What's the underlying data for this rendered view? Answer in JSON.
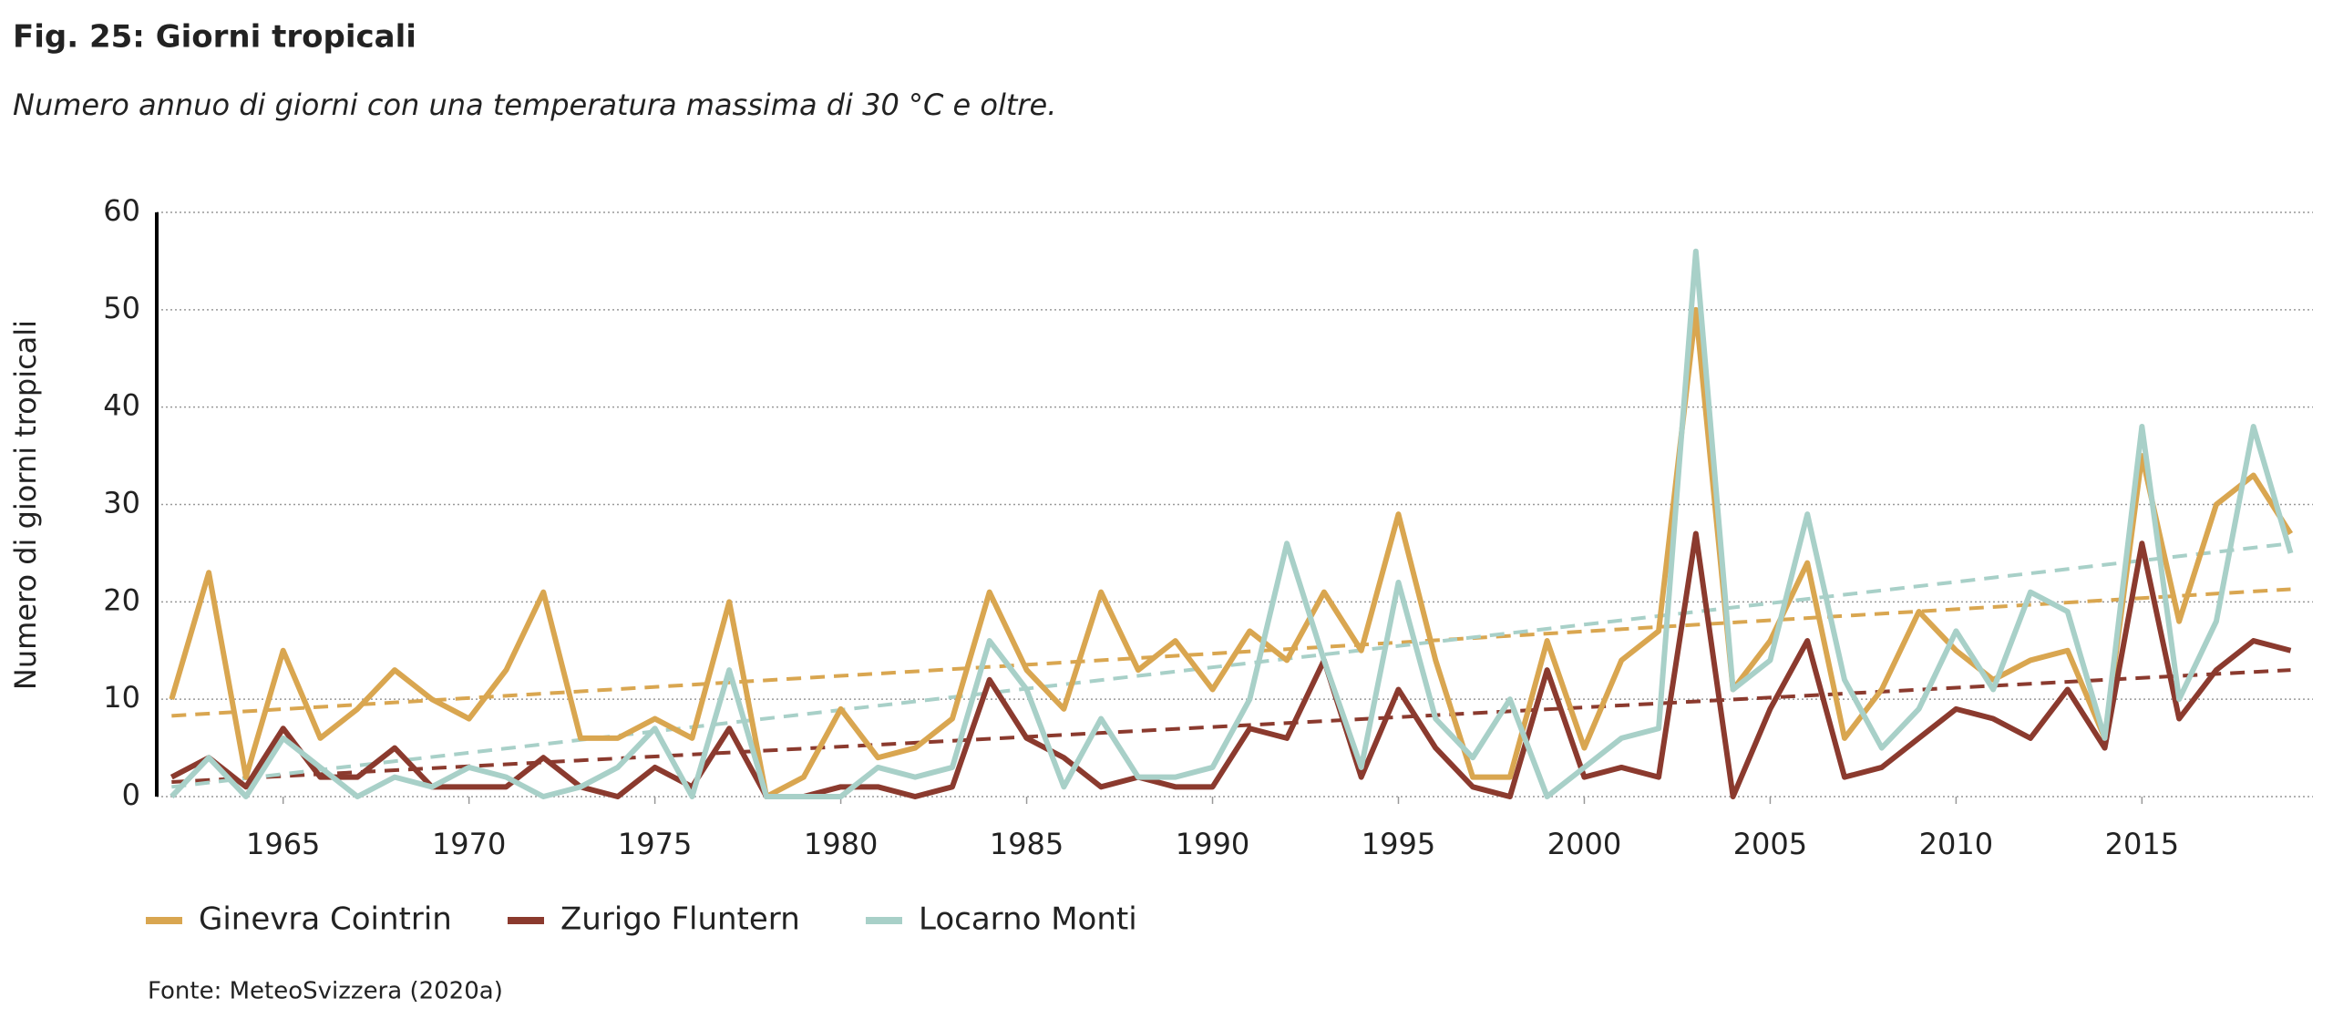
{
  "chart_data": {
    "type": "line",
    "title": "Fig. 25:  Giorni tropicali",
    "subtitle": "Numero annuo di giorni con una temperatura massima di 30 °C e oltre.",
    "y_label": "Numero di giorni tropicali",
    "source": "Fonte: MeteoSvizzera (2020a)",
    "x": [
      1962,
      1963,
      1964,
      1965,
      1966,
      1967,
      1968,
      1969,
      1970,
      1971,
      1972,
      1973,
      1974,
      1975,
      1976,
      1977,
      1978,
      1979,
      1980,
      1981,
      1982,
      1983,
      1984,
      1985,
      1986,
      1987,
      1988,
      1989,
      1990,
      1991,
      1992,
      1993,
      1994,
      1995,
      1996,
      1997,
      1998,
      1999,
      2000,
      2001,
      2002,
      2003,
      2004,
      2005,
      2006,
      2007,
      2008,
      2009,
      2010,
      2011,
      2012,
      2013,
      2014,
      2015,
      2016,
      2017,
      2018,
      2019
    ],
    "series": [
      {
        "name": "Ginevra Cointrin",
        "color": "#d9a650",
        "values": [
          10,
          23,
          2,
          15,
          6,
          9,
          13,
          10,
          8,
          13,
          21,
          6,
          6,
          8,
          6,
          20,
          0,
          2,
          9,
          4,
          5,
          8,
          21,
          13,
          9,
          21,
          13,
          16,
          11,
          17,
          14,
          21,
          15,
          29,
          14,
          2,
          2,
          16,
          5,
          14,
          17,
          50,
          11,
          16,
          24,
          6,
          11,
          19,
          15,
          12,
          14,
          15,
          6,
          35,
          18,
          30,
          33,
          27
        ]
      },
      {
        "name": "Zurigo Fluntern",
        "color": "#8b3a2e",
        "values": [
          2,
          4,
          1,
          7,
          2,
          2,
          5,
          1,
          1,
          1,
          4,
          1,
          0,
          3,
          1,
          7,
          0,
          0,
          1,
          1,
          0,
          1,
          12,
          6,
          4,
          1,
          2,
          1,
          1,
          7,
          6,
          14,
          2,
          11,
          5,
          1,
          0,
          13,
          2,
          3,
          2,
          27,
          0,
          9,
          16,
          2,
          3,
          6,
          9,
          8,
          6,
          11,
          5,
          26,
          8,
          13,
          16,
          15
        ]
      },
      {
        "name": "Locarno Monti",
        "color": "#a8d0c8",
        "values": [
          0,
          4,
          0,
          6,
          3,
          0,
          2,
          1,
          3,
          2,
          0,
          1,
          3,
          7,
          0,
          13,
          0,
          0,
          0,
          3,
          2,
          3,
          16,
          11,
          1,
          8,
          2,
          2,
          3,
          10,
          26,
          14,
          3,
          22,
          8,
          4,
          10,
          0,
          3,
          6,
          7,
          56,
          11,
          14,
          29,
          12,
          5,
          9,
          17,
          11,
          21,
          19,
          6,
          38,
          10,
          18,
          38,
          25
        ]
      }
    ],
    "trend_x": [
      1962,
      2019
    ],
    "trend_lines": [
      {
        "color": "#d9a650",
        "values": [
          8.3,
          21.3
        ]
      },
      {
        "color": "#8b3a2e",
        "values": [
          1.5,
          13
        ]
      },
      {
        "color": "#a8d0c8",
        "values": [
          1,
          26
        ]
      }
    ],
    "xlim": [
      1961.6,
      2019.6
    ],
    "xticks": [
      1965,
      1970,
      1975,
      1980,
      1985,
      1990,
      1995,
      2000,
      2005,
      2010,
      2015
    ],
    "ylim": [
      0,
      60
    ],
    "yticks": [
      0,
      10,
      20,
      30,
      40,
      50,
      60
    ],
    "grid": true
  }
}
